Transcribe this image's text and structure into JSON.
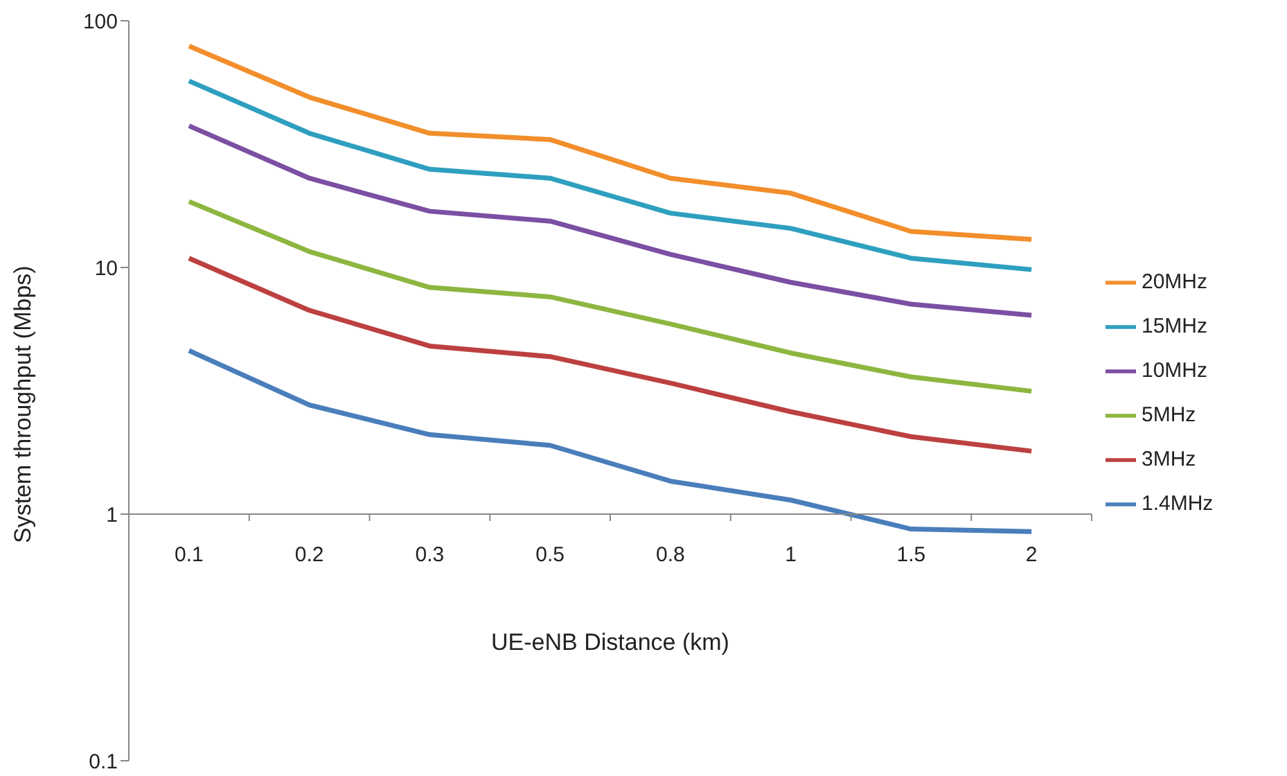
{
  "chart_data": {
    "type": "line",
    "xlabel": "UE-eNB Distance (km)",
    "ylabel": "System throughput  (Mbps)",
    "categories": [
      "0.1",
      "0.2",
      "0.3",
      "0.5",
      "0.8",
      "1",
      "1.5",
      "2"
    ],
    "series": [
      {
        "name": "20MHz",
        "color": "#f28e2b",
        "values": [
          79,
          49,
          35,
          33,
          23,
          20,
          14,
          13
        ]
      },
      {
        "name": "15MHz",
        "color": "#2e9fbf",
        "values": [
          57,
          35,
          25,
          23,
          16.6,
          14.4,
          10.9,
          9.8
        ]
      },
      {
        "name": "10MHz",
        "color": "#7b4fa3",
        "values": [
          37.5,
          23,
          16.9,
          15.4,
          11.3,
          8.7,
          7.1,
          6.4
        ]
      },
      {
        "name": "5MHz",
        "color": "#8db640",
        "values": [
          18.5,
          11.6,
          8.3,
          7.6,
          5.9,
          4.5,
          3.6,
          3.15
        ]
      },
      {
        "name": "3MHz",
        "color": "#bd4040",
        "values": [
          10.9,
          6.7,
          4.8,
          4.35,
          3.4,
          2.6,
          2.06,
          1.8
        ]
      },
      {
        "name": "1.4MHz",
        "color": "#4a7ebb",
        "values": [
          4.6,
          2.77,
          2.1,
          1.9,
          1.36,
          1.14,
          0.87,
          0.85
        ]
      }
    ],
    "log": "y",
    "ylim": [
      0.1,
      100
    ],
    "yticks": [
      0.1,
      1,
      10,
      100
    ],
    "legend": "right",
    "marker": "none",
    "line_style": "solid"
  }
}
